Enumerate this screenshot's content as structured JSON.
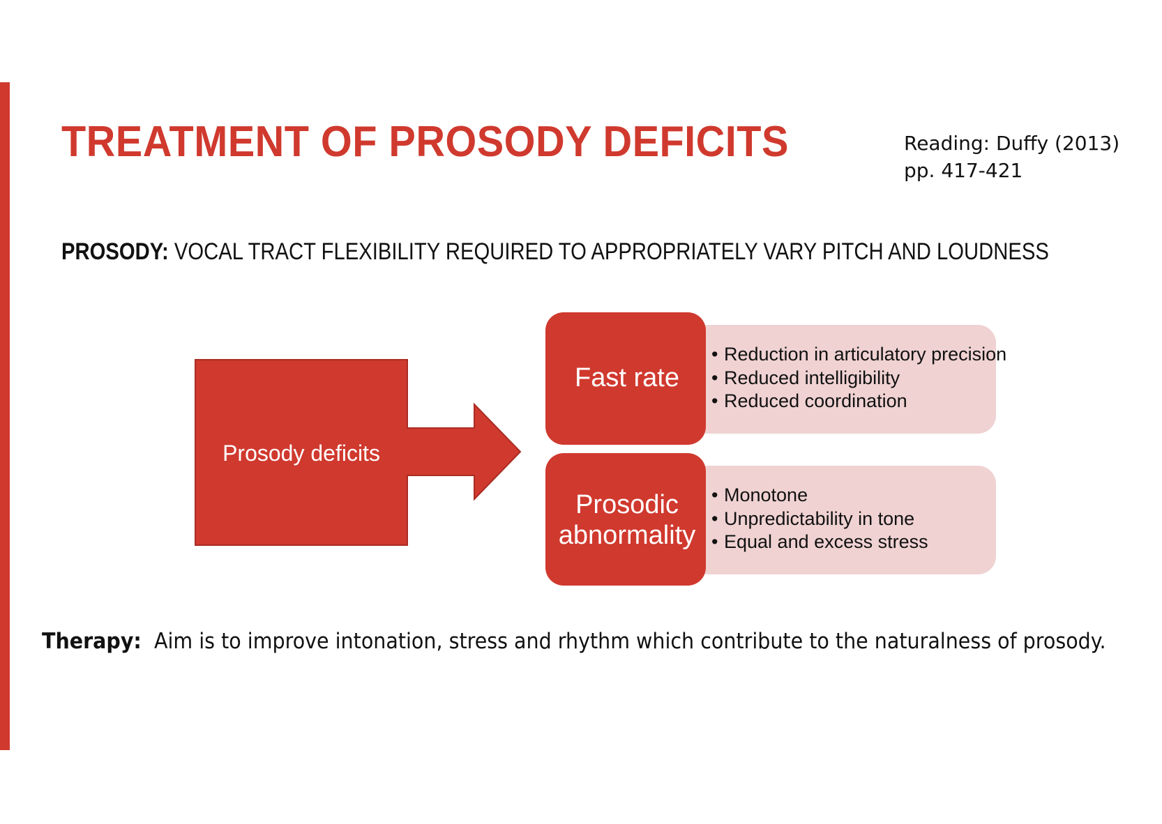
{
  "colors": {
    "accent": "#d0392e",
    "panel": "#f0d2d2"
  },
  "slide": {
    "title": "TREATMENT OF PROSODY DEFICITS",
    "reading": "Reading: Duffy (2013) pp. 417-421",
    "definition": {
      "term": "PROSODY:",
      "text": " VOCAL TRACT FLEXIBILITY REQUIRED TO APPROPRIATELY VARY PITCH AND LOUDNESS"
    },
    "diagram": {
      "source": "Prosody deficits",
      "categories": [
        {
          "label": "Fast rate",
          "items": [
            "Reduction in articulatory precision",
            "Reduced intelligibility",
            "Reduced coordination"
          ]
        },
        {
          "label": "Prosodic abnormality",
          "items": [
            "Monotone",
            "Unpredictability in tone",
            "Equal and excess stress"
          ]
        }
      ]
    },
    "therapy": {
      "term": "Therapy:",
      "text": "  Aim is to improve intonation, stress and rhythm which contribute to the naturalness of prosody."
    }
  }
}
